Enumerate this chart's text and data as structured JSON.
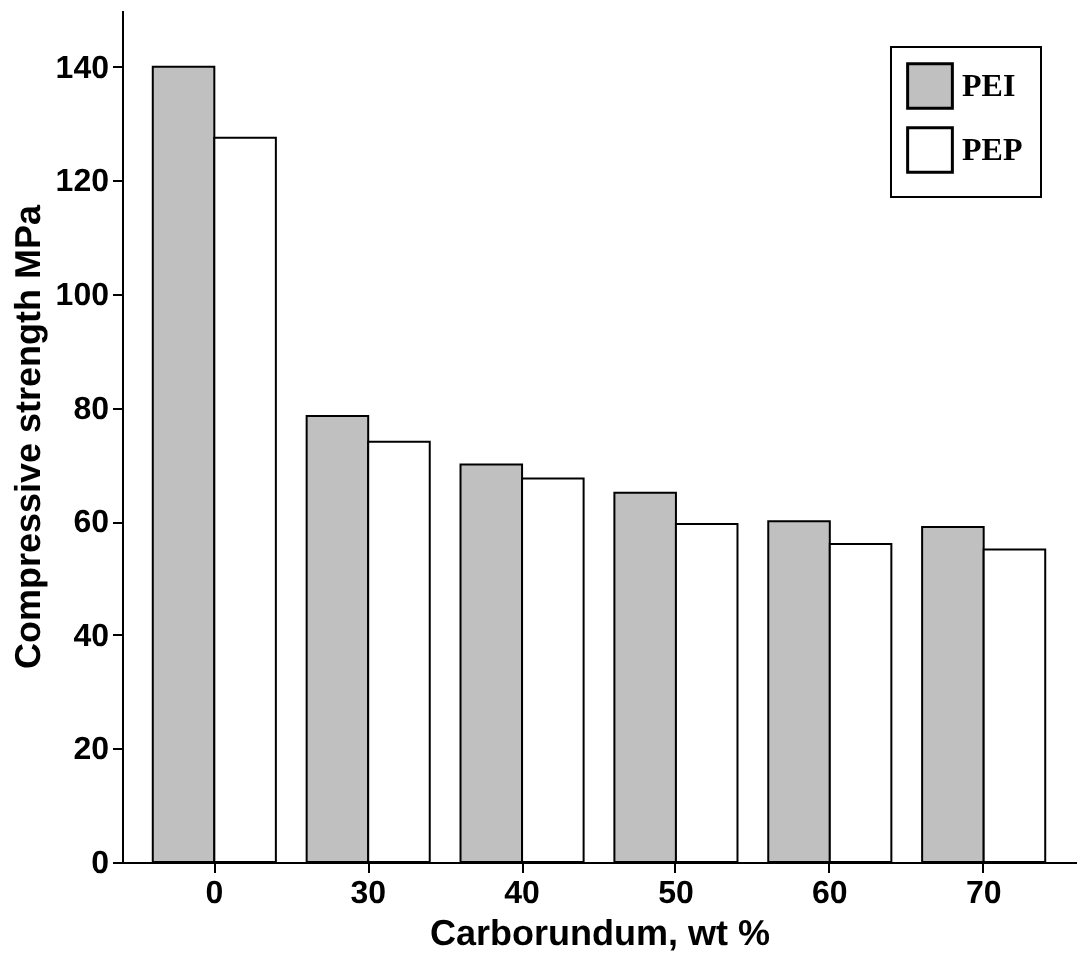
{
  "chart_data": {
    "type": "bar",
    "xlabel": "Carborundum, wt %",
    "ylabel": "Compressive strength MPa",
    "categories": [
      "0",
      "30",
      "40",
      "50",
      "60",
      "70"
    ],
    "series": [
      {
        "name": "PEI",
        "color": "#c0c0c0",
        "values": [
          140,
          78.5,
          70,
          65,
          60,
          59
        ]
      },
      {
        "name": "PEP",
        "color": "#ffffff",
        "values": [
          127.5,
          74,
          67.5,
          59.5,
          56,
          55
        ]
      }
    ],
    "ylim": [
      0,
      150
    ],
    "yticks": [
      0,
      20,
      40,
      60,
      80,
      100,
      120,
      140
    ],
    "grid": false,
    "legend": "top right"
  }
}
